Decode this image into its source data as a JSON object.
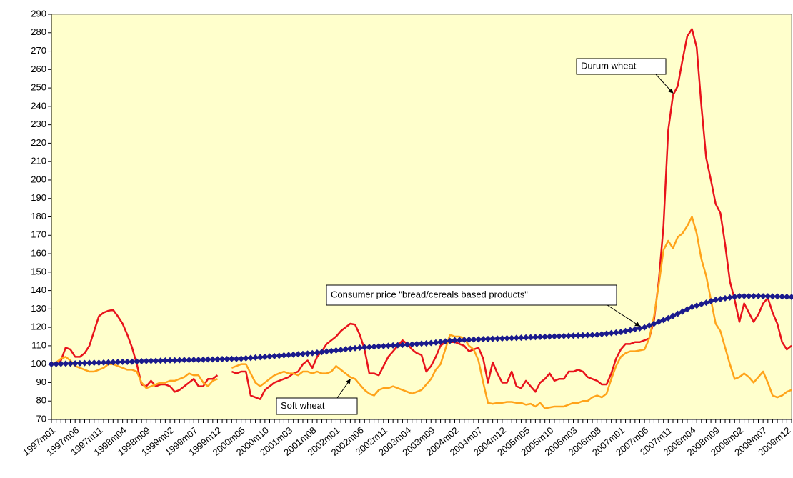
{
  "chart_data": {
    "type": "line",
    "categories": [
      "1997m01",
      null,
      null,
      null,
      null,
      "1997m06",
      null,
      null,
      null,
      null,
      "1997m11",
      null,
      null,
      null,
      null,
      "1998m04",
      null,
      null,
      null,
      null,
      "1998m09",
      null,
      null,
      null,
      null,
      "1999m02",
      null,
      null,
      null,
      null,
      "1999m07",
      null,
      null,
      null,
      null,
      "1999m12",
      null,
      null,
      null,
      null,
      "2000m05",
      null,
      null,
      null,
      null,
      "2000m10",
      null,
      null,
      null,
      null,
      "2001m03",
      null,
      null,
      null,
      null,
      "2001m08",
      null,
      null,
      null,
      null,
      "2002m01",
      null,
      null,
      null,
      null,
      "2002m06",
      null,
      null,
      null,
      null,
      "2002m11",
      null,
      null,
      null,
      null,
      "2003m04",
      null,
      null,
      null,
      null,
      "2003m09",
      null,
      null,
      null,
      null,
      "2004m02",
      null,
      null,
      null,
      null,
      "2004m07",
      null,
      null,
      null,
      null,
      "2004m12",
      null,
      null,
      null,
      null,
      "2005m05",
      null,
      null,
      null,
      null,
      "2005m10",
      null,
      null,
      null,
      null,
      "2006m03",
      null,
      null,
      null,
      null,
      "2006m08",
      null,
      null,
      null,
      null,
      "2007m01",
      null,
      null,
      null,
      null,
      "2007m06",
      null,
      null,
      null,
      null,
      "2007m11",
      null,
      null,
      null,
      null,
      "2008m04",
      null,
      null,
      null,
      null,
      "2008m09",
      null,
      null,
      null,
      null,
      "2009m02",
      null,
      null,
      null,
      null,
      "2009m07",
      null,
      null,
      null,
      null,
      "2009m12",
      null
    ],
    "series": [
      {
        "name": "Durum wheat",
        "color": "#e8131b",
        "values": [
          100,
          101,
          102,
          109,
          108,
          104,
          104,
          106,
          110,
          118,
          126,
          128,
          129,
          129.5,
          126,
          122,
          116,
          109,
          100,
          89,
          88,
          91,
          88,
          89,
          89,
          88,
          85,
          86,
          88,
          90,
          92,
          88,
          88,
          92,
          92,
          94,
          null,
          null,
          96,
          95,
          96,
          96,
          83,
          82,
          81,
          86,
          88,
          90,
          91,
          92,
          93,
          95,
          96,
          100,
          102,
          98,
          104,
          107,
          111,
          113,
          115,
          118,
          120,
          122,
          121.5,
          116,
          108,
          95,
          95,
          94,
          99,
          104,
          107,
          110,
          113,
          111,
          108,
          106,
          105,
          96,
          99,
          104,
          110,
          112,
          112,
          112,
          111,
          110,
          107,
          108,
          109,
          103,
          90,
          101,
          95,
          90,
          90,
          96,
          88,
          87,
          91,
          88,
          85,
          90,
          92,
          95,
          91,
          92,
          92,
          96,
          96,
          97,
          96,
          93,
          92,
          91,
          89,
          89,
          95,
          103,
          108,
          111,
          111,
          112,
          112,
          113,
          114,
          124,
          145,
          175,
          227,
          246,
          251,
          265,
          278,
          282,
          272,
          240,
          212,
          200,
          187,
          182,
          165,
          145,
          135,
          123,
          133,
          128,
          123,
          127,
          133,
          136,
          128,
          122,
          112,
          108,
          110
        ]
      },
      {
        "name": "Soft wheat",
        "color": "#ffa31a",
        "values": [
          100,
          101,
          103,
          104,
          102,
          99,
          98,
          97,
          96,
          96,
          97,
          98,
          100,
          100,
          99,
          98,
          97,
          97,
          96,
          90,
          87,
          88,
          89,
          90,
          90,
          91,
          91,
          92,
          93,
          95,
          94,
          94,
          90,
          88,
          91,
          92,
          null,
          null,
          98,
          99,
          100,
          100,
          95,
          90,
          88,
          90,
          92,
          94,
          95,
          96,
          95,
          95,
          94,
          96,
          96,
          95,
          96,
          95,
          95,
          96,
          99,
          97,
          95,
          93,
          92,
          89,
          86,
          84,
          83,
          86,
          87,
          87,
          88,
          87,
          86,
          85,
          84,
          85,
          86,
          89,
          92,
          97,
          100,
          108,
          116,
          115,
          115,
          114,
          110,
          108,
          102,
          90,
          79,
          78.5,
          79,
          79,
          79.5,
          79.5,
          79,
          79,
          78,
          78.5,
          77,
          79,
          76,
          76.5,
          77,
          77,
          77,
          78,
          79,
          79,
          80,
          80,
          82,
          83,
          82,
          84,
          92,
          99,
          104,
          106,
          107,
          107,
          107.5,
          108,
          114,
          126,
          143,
          162,
          167,
          163,
          169,
          171,
          175,
          180,
          171,
          157,
          148,
          135,
          122,
          118,
          109,
          100,
          92,
          93,
          95,
          93,
          90,
          93,
          96,
          90,
          83,
          82,
          83,
          85,
          86
        ]
      },
      {
        "name": "Consumer price \"bread/cereals based products\"",
        "color": "#1a1a8c",
        "marker": "diamond",
        "values": [
          100,
          100.1,
          100.2,
          100.3,
          100.3,
          100.4,
          100.5,
          100.6,
          100.7,
          100.8,
          100.8,
          100.9,
          101,
          101.1,
          101.2,
          101.3,
          101.3,
          101.4,
          101.5,
          101.6,
          101.7,
          101.8,
          101.8,
          101.9,
          102,
          102.1,
          102.1,
          102.2,
          102.3,
          102.3,
          102.4,
          102.4,
          102.5,
          102.6,
          102.6,
          102.7,
          102.8,
          102.8,
          102.9,
          102.9,
          103,
          103.2,
          103.4,
          103.6,
          103.8,
          104,
          104.2,
          104.4,
          104.6,
          104.8,
          105,
          105.2,
          105.4,
          105.6,
          105.8,
          106,
          106.3,
          106.6,
          106.9,
          107.2,
          107.5,
          107.8,
          108.1,
          108.4,
          108.7,
          109,
          109.2,
          109.3,
          109.5,
          109.7,
          109.8,
          110,
          110.2,
          110.3,
          110.5,
          110.7,
          110.8,
          111,
          111.2,
          111.3,
          111.5,
          111.8,
          112.1,
          112.4,
          112.7,
          113,
          113.1,
          113.2,
          113.3,
          113.4,
          113.5,
          113.6,
          113.7,
          113.8,
          113.9,
          114,
          114.1,
          114.2,
          114.3,
          114.4,
          114.5,
          114.6,
          114.7,
          114.8,
          114.9,
          115,
          115.1,
          115.2,
          115.3,
          115.4,
          115.5,
          115.6,
          115.7,
          115.8,
          115.9,
          116,
          116.3,
          116.6,
          116.9,
          117.2,
          117.5,
          118,
          118.5,
          119,
          119.5,
          120,
          121,
          122,
          123,
          124,
          125,
          126.2,
          127.4,
          128.6,
          129.8,
          131,
          131.8,
          132.6,
          133.4,
          134.2,
          135,
          135.4,
          135.8,
          136.2,
          136.6,
          137,
          137,
          137,
          137,
          137,
          136.9,
          136.9,
          136.8,
          136.8,
          136.7,
          136.6,
          136.5
        ]
      }
    ],
    "ylim": [
      70,
      290
    ],
    "yticks": [
      70,
      80,
      90,
      100,
      110,
      120,
      130,
      140,
      150,
      160,
      170,
      180,
      190,
      200,
      210,
      220,
      230,
      240,
      250,
      260,
      270,
      280,
      290
    ],
    "grid": false
  }
}
